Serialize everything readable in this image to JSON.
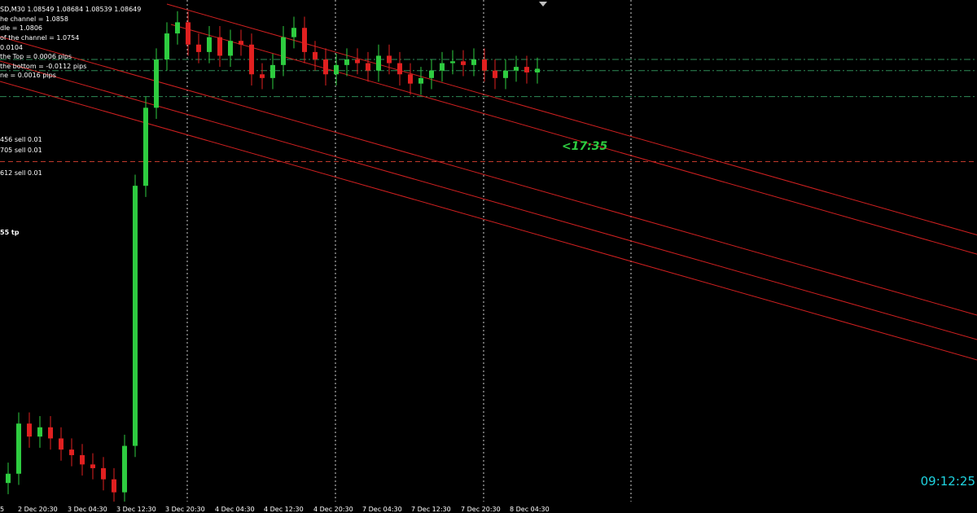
{
  "header": {
    "symbol_line": "SD,M30  1.08549 1.08684 1.08539 1.08649",
    "stats": [
      "he channel = 1.0858",
      "dle = 1.0806",
      "of the channel = 1.0754",
      "0.0104",
      " the Top = 0.0006 pips",
      " the bottom = -0.0112 pips",
      "ne  = 0.0016 pips"
    ]
  },
  "orders": [
    {
      "label": "456 sell 0.01",
      "price": 1.0858
    },
    {
      "label": "705 sell 0.01",
      "price": 1.0852
    },
    {
      "label": "612 sell 0.01",
      "price": 1.0838
    },
    {
      "label": "55 tp",
      "price": 1.0803
    }
  ],
  "countdown": "<17:35",
  "clock": "09:12:25",
  "time_axis": {
    "labels": [
      "2 Dec 20:30",
      "3 Dec 04:30",
      "3 Dec 12:30",
      "3 Dec 20:30",
      "4 Dec 04:30",
      "4 Dec 12:30",
      "4 Dec 20:30",
      "7 Dec 04:30",
      "7 Dec 12:30",
      "7 Dec 20:30",
      "8 Dec 04:30"
    ],
    "edge_label": "5"
  },
  "chart_data": {
    "type": "candlestick",
    "timeframe": "M30",
    "ylim": [
      1.062,
      1.089
    ],
    "channel": {
      "top": 1.0858,
      "middle": 1.0806,
      "bottom": 1.0754
    },
    "candles_close": [
      1.0635,
      1.0662,
      1.0655,
      1.066,
      1.0654,
      1.0648,
      1.0645,
      1.064,
      1.0638,
      1.0632,
      1.0625,
      1.065,
      1.079,
      1.0832,
      1.0858,
      1.0872,
      1.0878,
      1.0866,
      1.0862,
      1.087,
      1.086,
      1.0868,
      1.0866,
      1.085,
      1.0848,
      1.0855,
      1.087,
      1.0875,
      1.0862,
      1.0858,
      1.085,
      1.0855,
      1.0858,
      1.0856,
      1.0852,
      1.086,
      1.0856,
      1.085,
      1.0845,
      1.0848,
      1.0852,
      1.0856,
      1.0857,
      1.0855,
      1.0858,
      1.0852,
      1.0848,
      1.0852,
      1.0854,
      1.0851,
      1.0853
    ]
  }
}
